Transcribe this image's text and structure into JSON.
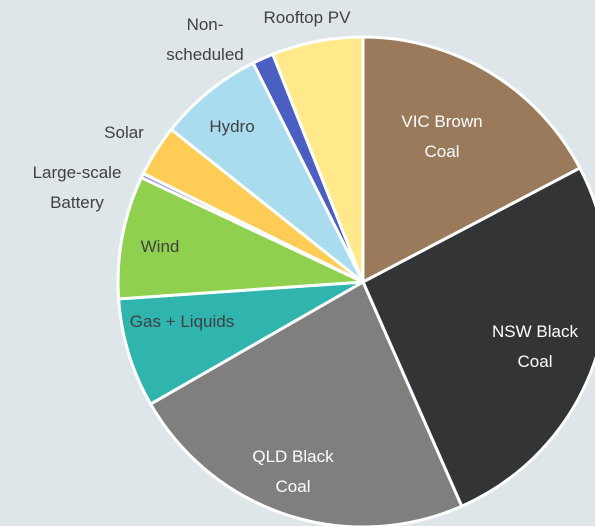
{
  "chart_data": {
    "type": "pie",
    "categories": [
      "VIC Brown Coal",
      "NSW Black Coal",
      "QLD Black Coal",
      "Gas + Liquids",
      "Wind",
      "Large-scale Battery",
      "Solar",
      "Hydro",
      "Non-scheduled",
      "Rooftop PV"
    ],
    "values": [
      17.3,
      26.1,
      23.3,
      7.2,
      8.1,
      0.3,
      3.4,
      6.9,
      1.4,
      6.0
    ],
    "colors": [
      "#9b7a5c",
      "#333436",
      "#7f7f7f",
      "#2fb5ad",
      "#8fd14f",
      "#9a9ad6",
      "#ffcc55",
      "#a9dcee",
      "#4a5fc1",
      "#ffe98a"
    ]
  }
}
